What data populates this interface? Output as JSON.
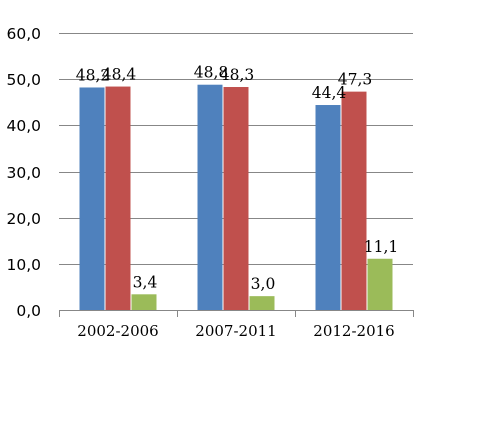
{
  "chart_data": {
    "type": "bar",
    "categories": [
      "2002-2006",
      "2007-2011",
      "2012-2016"
    ],
    "series": [
      {
        "values": [
          48.2,
          48.8,
          44.4
        ],
        "labels": [
          "48,2",
          "48,8",
          "44,4"
        ],
        "color": "#4f81bd"
      },
      {
        "values": [
          48.4,
          48.3,
          47.3
        ],
        "labels": [
          "48,4",
          "48,3",
          "47,3"
        ],
        "color": "#c0504d"
      },
      {
        "values": [
          3.4,
          3.0,
          11.1
        ],
        "labels": [
          "3,4",
          "3,0",
          "11,1"
        ],
        "color": "#9bbb59"
      }
    ],
    "yticks": [
      "0,0",
      "10,0",
      "20,0",
      "30,0",
      "40,0",
      "50,0",
      "60,0"
    ],
    "ylim": [
      0,
      60
    ],
    "grid": true,
    "legend": "none",
    "gridline_color": "#878787",
    "axis_color": "#878787"
  }
}
